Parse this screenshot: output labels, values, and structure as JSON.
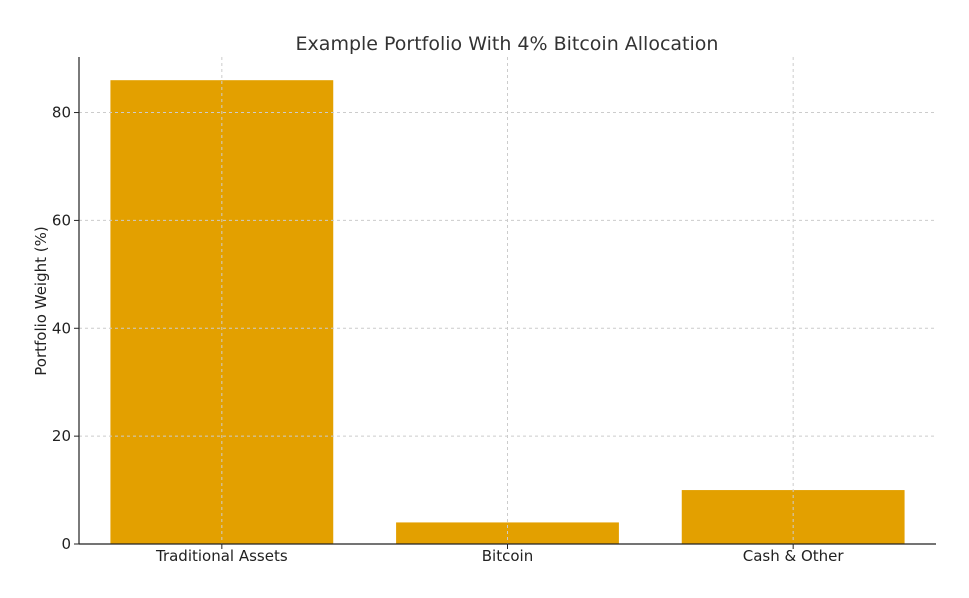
{
  "chart_data": {
    "type": "bar",
    "title": "Example Portfolio With 4% Bitcoin Allocation",
    "xlabel": "",
    "ylabel": "Portfolio Weight (%)",
    "categories": [
      "Traditional Assets",
      "Bitcoin",
      "Cash & Other"
    ],
    "values": [
      86,
      4,
      10
    ],
    "ylim": [
      0,
      90.3
    ],
    "yticks": [
      0,
      20,
      40,
      60,
      80
    ],
    "grid": true,
    "bar_color": "#E3A000",
    "grid_color": "#CCCCCC"
  }
}
